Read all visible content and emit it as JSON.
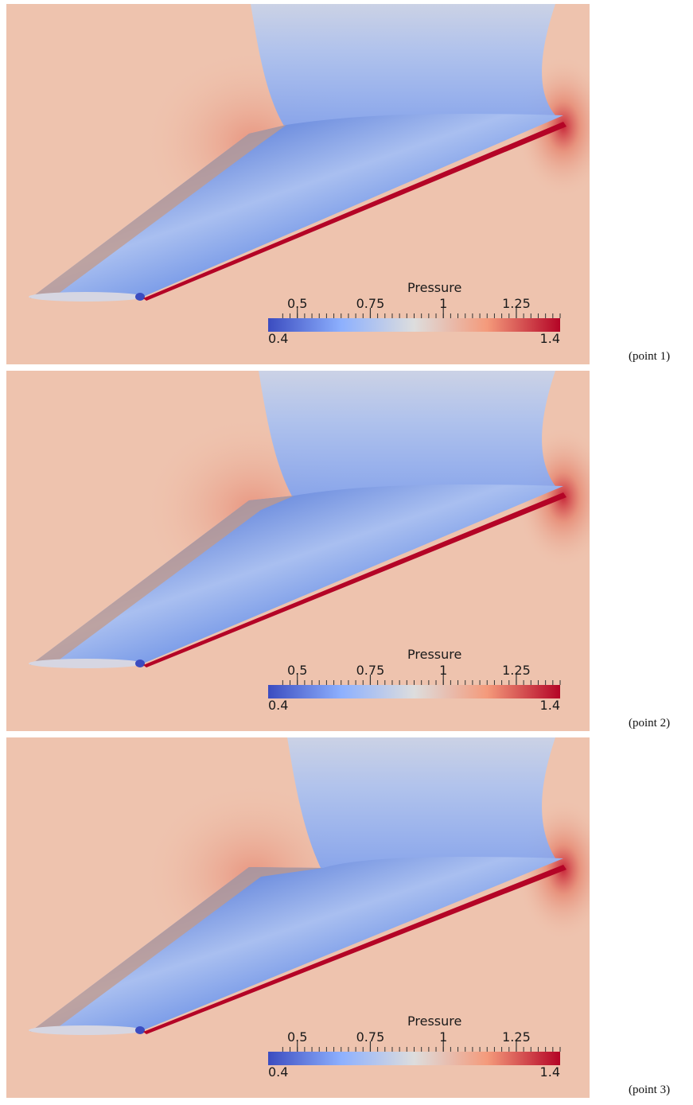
{
  "colorbar": {
    "title": "Pressure",
    "range": [
      0.4,
      1.4
    ],
    "min_label": "0.4",
    "max_label": "1.4",
    "ticks": [
      {
        "value": 0.5,
        "label": "0.5"
      },
      {
        "value": 0.75,
        "label": "0.75"
      },
      {
        "value": 1.0,
        "label": "1"
      },
      {
        "value": 1.25,
        "label": "1.25"
      }
    ],
    "colormap": [
      "#3b4cc0",
      "#8db0fe",
      "#dddddd",
      "#f49a7b",
      "#b40426"
    ]
  },
  "panels": [
    {
      "label": "(point 1)"
    },
    {
      "label": "(point 2)"
    },
    {
      "label": "(point 3)"
    }
  ]
}
